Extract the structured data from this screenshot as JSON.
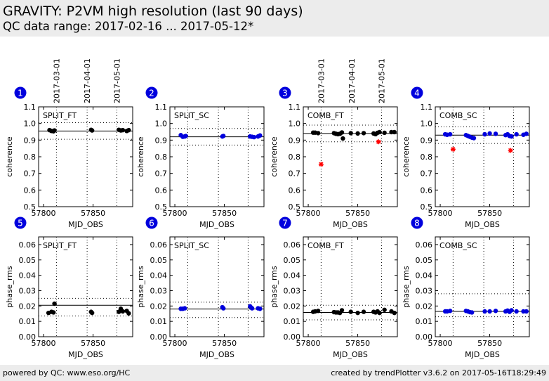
{
  "header": {
    "title": "GRAVITY: P2VM high resolution (last 90 days)",
    "subtitle": "QC data range: 2017-02-16 ... 2017-05-12*"
  },
  "footer": {
    "left": "powered by QC: www.eso.org/HC",
    "right": "created by trendPlotter v3.6.2 on 2017-05-16T18:29:49"
  },
  "colors": {
    "ft": "#000000",
    "sc": "#0000dd",
    "outlier": "#ff0000",
    "badge": "#0000dd"
  },
  "date_labels": [
    {
      "label": "2017-03-01",
      "mjd": 57813
    },
    {
      "label": "2017-04-01",
      "mjd": 57844
    },
    {
      "label": "2017-05-01",
      "mjd": 57874
    }
  ],
  "chart_data": [
    {
      "type": "scatter",
      "id": 1,
      "panel_label": "SPLIT_FT",
      "color": "ft",
      "xlabel": "MJD_OBS",
      "ylabel": "coherence",
      "xlim": [
        57795,
        57890
      ],
      "ylim": [
        0.5,
        1.1
      ],
      "xticks": [
        57800,
        57850
      ],
      "yticks": [
        0.5,
        0.6,
        0.7,
        0.8,
        0.9,
        1.0,
        1.1
      ],
      "ref": 0.955,
      "upper": 1.005,
      "lower": 0.905,
      "points": [
        [
          57806,
          0.96
        ],
        [
          57808,
          0.955
        ],
        [
          57810,
          0.953
        ],
        [
          57811,
          0.958
        ],
        [
          57848,
          0.962
        ],
        [
          57849,
          0.958
        ],
        [
          57876,
          0.962
        ],
        [
          57878,
          0.958
        ],
        [
          57880,
          0.96
        ],
        [
          57884,
          0.955
        ],
        [
          57886,
          0.96
        ]
      ],
      "outliers": [],
      "show_dates": true
    },
    {
      "type": "scatter",
      "id": 2,
      "panel_label": "SPLIT_SC",
      "color": "sc",
      "xlabel": "MJD_OBS",
      "ylabel": "coherence",
      "xlim": [
        57795,
        57890
      ],
      "ylim": [
        0.5,
        1.1
      ],
      "xticks": [
        57800,
        57850
      ],
      "yticks": [
        0.5,
        0.6,
        0.7,
        0.8,
        0.9,
        1.0,
        1.1
      ],
      "ref": 0.92,
      "upper": 0.97,
      "lower": 0.87,
      "points": [
        [
          57806,
          0.93
        ],
        [
          57808,
          0.92
        ],
        [
          57810,
          0.922
        ],
        [
          57811,
          0.925
        ],
        [
          57848,
          0.922
        ],
        [
          57849,
          0.925
        ],
        [
          57876,
          0.922
        ],
        [
          57878,
          0.92
        ],
        [
          57880,
          0.918
        ],
        [
          57884,
          0.922
        ],
        [
          57886,
          0.928
        ]
      ],
      "outliers": [],
      "show_dates": false
    },
    {
      "type": "scatter",
      "id": 3,
      "panel_label": "COMB_FT",
      "color": "ft",
      "xlabel": "MJD_OBS",
      "ylabel": "coherence",
      "xlim": [
        57795,
        57890
      ],
      "ylim": [
        0.5,
        1.1
      ],
      "xticks": [
        57800,
        57850
      ],
      "yticks": [
        0.5,
        0.6,
        0.7,
        0.8,
        0.9,
        1.0,
        1.1
      ],
      "ref": 0.94,
      "upper": 0.99,
      "lower": 0.89,
      "points": [
        [
          57805,
          0.945
        ],
        [
          57807,
          0.945
        ],
        [
          57810,
          0.942
        ],
        [
          57826,
          0.942
        ],
        [
          57828,
          0.938
        ],
        [
          57830,
          0.936
        ],
        [
          57832,
          0.938
        ],
        [
          57834,
          0.946
        ],
        [
          57835,
          0.91
        ],
        [
          57843,
          0.942
        ],
        [
          57850,
          0.94
        ],
        [
          57856,
          0.942
        ],
        [
          57866,
          0.94
        ],
        [
          57868,
          0.936
        ],
        [
          57870,
          0.944
        ],
        [
          57872,
          0.948
        ],
        [
          57877,
          0.944
        ],
        [
          57884,
          0.948
        ],
        [
          57887,
          0.948
        ]
      ],
      "outliers": [
        [
          57813,
          0.755
        ],
        [
          57871,
          0.89
        ]
      ],
      "show_dates": true
    },
    {
      "type": "scatter",
      "id": 4,
      "panel_label": "COMB_SC",
      "color": "sc",
      "xlabel": "MJD_OBS",
      "ylabel": "coherence",
      "xlim": [
        57795,
        57890
      ],
      "ylim": [
        0.5,
        1.1
      ],
      "xticks": [
        57800,
        57850
      ],
      "yticks": [
        0.5,
        0.6,
        0.7,
        0.8,
        0.9,
        1.0,
        1.1
      ],
      "ref": 0.93,
      "upper": 0.98,
      "lower": 0.88,
      "points": [
        [
          57805,
          0.935
        ],
        [
          57807,
          0.932
        ],
        [
          57810,
          0.935
        ],
        [
          57826,
          0.93
        ],
        [
          57828,
          0.925
        ],
        [
          57830,
          0.92
        ],
        [
          57832,
          0.915
        ],
        [
          57834,
          0.912
        ],
        [
          57845,
          0.935
        ],
        [
          57850,
          0.94
        ],
        [
          57856,
          0.938
        ],
        [
          57866,
          0.93
        ],
        [
          57868,
          0.935
        ],
        [
          57870,
          0.925
        ],
        [
          57872,
          0.922
        ],
        [
          57877,
          0.935
        ],
        [
          57884,
          0.932
        ],
        [
          57887,
          0.938
        ]
      ],
      "outliers": [
        [
          57813,
          0.845
        ],
        [
          57871,
          0.838
        ]
      ],
      "show_dates": false
    },
    {
      "type": "scatter",
      "id": 5,
      "panel_label": "SPLIT_FT",
      "color": "ft",
      "xlabel": "MJD_OBS",
      "ylabel": "phase_rms",
      "xlim": [
        57795,
        57890
      ],
      "ylim": [
        0.0,
        0.065
      ],
      "xticks": [
        57800,
        57850
      ],
      "yticks": [
        0.0,
        0.01,
        0.02,
        0.03,
        0.04,
        0.05,
        0.06
      ],
      "ref": 0.0205,
      "upper": 0.025,
      "lower": 0.0135,
      "points": [
        [
          57805,
          0.0155
        ],
        [
          57808,
          0.0162
        ],
        [
          57810,
          0.0158
        ],
        [
          57811,
          0.0215
        ],
        [
          57848,
          0.0162
        ],
        [
          57849,
          0.0155
        ],
        [
          57876,
          0.0162
        ],
        [
          57878,
          0.0182
        ],
        [
          57880,
          0.0165
        ],
        [
          57884,
          0.0168
        ],
        [
          57886,
          0.0152
        ]
      ],
      "outliers": [],
      "show_dates": false
    },
    {
      "type": "scatter",
      "id": 6,
      "panel_label": "SPLIT_SC",
      "color": "sc",
      "xlabel": "MJD_OBS",
      "ylabel": "phase_rms",
      "xlim": [
        57795,
        57890
      ],
      "ylim": [
        0.0,
        0.065
      ],
      "xticks": [
        57800,
        57850
      ],
      "yticks": [
        0.0,
        0.01,
        0.02,
        0.03,
        0.04,
        0.05,
        0.06
      ],
      "ref": 0.018,
      "upper": 0.0225,
      "lower": 0.0125,
      "points": [
        [
          57806,
          0.0182
        ],
        [
          57808,
          0.0182
        ],
        [
          57810,
          0.0185
        ],
        [
          57848,
          0.0192
        ],
        [
          57849,
          0.0185
        ],
        [
          57876,
          0.0198
        ],
        [
          57877,
          0.019
        ],
        [
          57878,
          0.0185
        ],
        [
          57884,
          0.0185
        ],
        [
          57886,
          0.0182
        ]
      ],
      "outliers": [],
      "show_dates": false
    },
    {
      "type": "scatter",
      "id": 7,
      "panel_label": "COMB_FT",
      "color": "ft",
      "xlabel": "MJD_OBS",
      "ylabel": "phase_rms",
      "xlim": [
        57795,
        57890
      ],
      "ylim": [
        0.0,
        0.065
      ],
      "xticks": [
        57800,
        57850
      ],
      "yticks": [
        0.0,
        0.01,
        0.02,
        0.03,
        0.04,
        0.05,
        0.06
      ],
      "ref": 0.0158,
      "upper": 0.0205,
      "lower": 0.011,
      "points": [
        [
          57805,
          0.0162
        ],
        [
          57807,
          0.0165
        ],
        [
          57810,
          0.0168
        ],
        [
          57826,
          0.016
        ],
        [
          57828,
          0.0158
        ],
        [
          57830,
          0.0158
        ],
        [
          57832,
          0.0155
        ],
        [
          57834,
          0.0172
        ],
        [
          57843,
          0.0162
        ],
        [
          57850,
          0.0155
        ],
        [
          57856,
          0.0162
        ],
        [
          57866,
          0.0162
        ],
        [
          57868,
          0.0158
        ],
        [
          57870,
          0.0165
        ],
        [
          57872,
          0.0155
        ],
        [
          57877,
          0.0175
        ],
        [
          57884,
          0.0165
        ],
        [
          57887,
          0.0155
        ]
      ],
      "outliers": [],
      "show_dates": false
    },
    {
      "type": "scatter",
      "id": 8,
      "panel_label": "COMB_SC",
      "color": "sc",
      "xlabel": "MJD_OBS",
      "ylabel": "phase_rms",
      "xlim": [
        57795,
        57890
      ],
      "ylim": [
        0.0,
        0.065
      ],
      "xticks": [
        57800,
        57850
      ],
      "yticks": [
        0.0,
        0.01,
        0.02,
        0.03,
        0.04,
        0.05,
        0.06
      ],
      "ref": 0.0165,
      "upper": 0.028,
      "lower": 0.013,
      "points": [
        [
          57805,
          0.0165
        ],
        [
          57807,
          0.0165
        ],
        [
          57810,
          0.0168
        ],
        [
          57826,
          0.0168
        ],
        [
          57828,
          0.0165
        ],
        [
          57830,
          0.016
        ],
        [
          57832,
          0.0158
        ],
        [
          57845,
          0.0165
        ],
        [
          57850,
          0.0165
        ],
        [
          57856,
          0.0168
        ],
        [
          57866,
          0.0165
        ],
        [
          57868,
          0.017
        ],
        [
          57870,
          0.0162
        ],
        [
          57872,
          0.0172
        ],
        [
          57877,
          0.0165
        ],
        [
          57884,
          0.0165
        ],
        [
          57887,
          0.0165
        ]
      ],
      "outliers": [],
      "show_dates": false
    }
  ]
}
